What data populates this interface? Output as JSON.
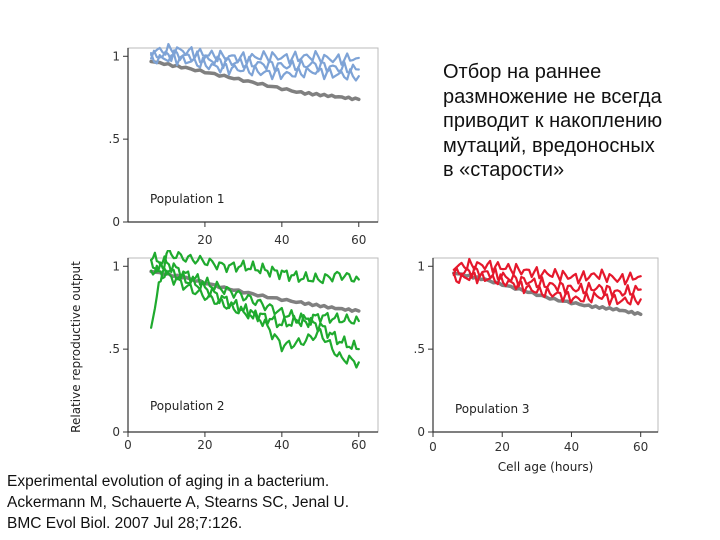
{
  "text_note": [
    "Отбор на раннее",
    "размножение не всегда",
    "приводит к накоплению",
    "мутаций, вредоносных",
    "в «старости»"
  ],
  "citation": [
    "Experimental evolution of aging in a bacterium.",
    "Ackermann M, Schauerte A, Stearns SC, Jenal U.",
    "BMC Evol Biol. 2007 Jul 28;7:126."
  ],
  "colors": {
    "reference": "#808080",
    "population_1": "#7ea3d6",
    "population_2": "#1faa2e",
    "population_3": "#e5182c"
  },
  "chart_data": [
    {
      "type": "line",
      "panel_label": "Population 1",
      "xlabel": "",
      "ylabel": "",
      "xlim": [
        0,
        65
      ],
      "ylim": [
        0,
        1.05
      ],
      "x_ticks": [
        "20",
        "40",
        "60"
      ],
      "y_ticks": [
        "0",
        ".5",
        "1"
      ],
      "series": [
        {
          "x": [
            6,
            15,
            25,
            35,
            45,
            53,
            60
          ],
          "values": [
            0.97,
            0.93,
            0.88,
            0.83,
            0.78,
            0.76,
            0.74
          ]
        },
        {
          "x": [
            6,
            12,
            18,
            24,
            30,
            36,
            42,
            48,
            54,
            60
          ],
          "values": [
            1.03,
            1.04,
            1.02,
            1.0,
            0.99,
            1.0,
            0.99,
            1.0,
            0.98,
            0.99
          ]
        },
        {
          "x": [
            6,
            12,
            18,
            24,
            30,
            36,
            42,
            48,
            54,
            60
          ],
          "values": [
            1.0,
            1.01,
            0.99,
            0.97,
            0.96,
            0.95,
            0.94,
            0.95,
            0.93,
            0.92
          ]
        },
        {
          "x": [
            6,
            12,
            18,
            24,
            30,
            36,
            42,
            48,
            54,
            60
          ],
          "values": [
            0.98,
            0.99,
            0.96,
            0.93,
            0.92,
            0.9,
            0.89,
            0.91,
            0.89,
            0.88
          ]
        }
      ]
    },
    {
      "type": "line",
      "panel_label": "Population 2",
      "xlabel": "",
      "ylabel": "Relative reproductive output",
      "xlim": [
        0,
        65
      ],
      "ylim": [
        0,
        1.05
      ],
      "x_ticks": [
        "0",
        "20",
        "40",
        "60"
      ],
      "y_ticks": [
        "0",
        ".5",
        "1"
      ],
      "series": [
        {
          "x": [
            6,
            15,
            25,
            35,
            45,
            53,
            60
          ],
          "values": [
            0.97,
            0.93,
            0.87,
            0.82,
            0.78,
            0.75,
            0.73
          ]
        },
        {
          "x": [
            6,
            10,
            15,
            20,
            25,
            30,
            35,
            40,
            45,
            50,
            55,
            60
          ],
          "values": [
            0.65,
            1.08,
            1.05,
            1.03,
            1.0,
            1.0,
            0.98,
            0.96,
            0.93,
            0.92,
            0.95,
            0.92
          ]
        },
        {
          "x": [
            6,
            10,
            15,
            20,
            25,
            30,
            35,
            40,
            45,
            50,
            55,
            60
          ],
          "values": [
            1.05,
            1.02,
            0.95,
            0.9,
            0.86,
            0.82,
            0.77,
            0.72,
            0.68,
            0.64,
            0.55,
            0.5
          ]
        },
        {
          "x": [
            6,
            10,
            15,
            20,
            25,
            30,
            35,
            40,
            45,
            50,
            55,
            60
          ],
          "values": [
            1.0,
            0.98,
            0.92,
            0.87,
            0.8,
            0.74,
            0.67,
            0.52,
            0.54,
            0.6,
            0.45,
            0.42
          ]
        },
        {
          "x": [
            6,
            10,
            15,
            20,
            25,
            30,
            35,
            40,
            45,
            50,
            55,
            60
          ],
          "values": [
            0.98,
            0.95,
            0.88,
            0.82,
            0.77,
            0.72,
            0.7,
            0.65,
            0.67,
            0.7,
            0.68,
            0.67
          ]
        }
      ]
    },
    {
      "type": "line",
      "panel_label": "Population 3",
      "xlabel": "Cell age (hours)",
      "ylabel": "",
      "xlim": [
        0,
        65
      ],
      "ylim": [
        0,
        1.05
      ],
      "x_ticks": [
        "0",
        "20",
        "40",
        "60"
      ],
      "y_ticks": [
        "0",
        ".5",
        "1"
      ],
      "series": [
        {
          "x": [
            6,
            15,
            25,
            35,
            45,
            53,
            60
          ],
          "values": [
            0.96,
            0.92,
            0.86,
            0.8,
            0.76,
            0.74,
            0.71
          ]
        },
        {
          "x": [
            6,
            12,
            18,
            24,
            30,
            36,
            42,
            48,
            54,
            60
          ],
          "values": [
            1.0,
            1.01,
            1.0,
            0.98,
            0.96,
            0.95,
            0.93,
            0.95,
            0.92,
            0.94
          ]
        },
        {
          "x": [
            6,
            12,
            18,
            24,
            30,
            36,
            42,
            48,
            54,
            60
          ],
          "values": [
            0.96,
            0.97,
            0.95,
            0.92,
            0.9,
            0.88,
            0.86,
            0.87,
            0.84,
            0.86
          ]
        },
        {
          "x": [
            6,
            12,
            18,
            24,
            30,
            36,
            42,
            48,
            54,
            60
          ],
          "values": [
            0.92,
            0.94,
            0.92,
            0.89,
            0.85,
            0.83,
            0.8,
            0.82,
            0.79,
            0.8
          ]
        }
      ]
    }
  ]
}
